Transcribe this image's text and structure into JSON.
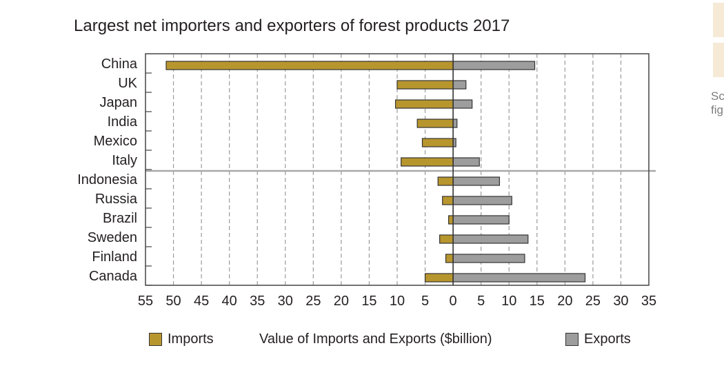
{
  "chart_data": {
    "type": "bar",
    "orientation": "horizontal",
    "title": "Largest net importers and exporters of forest products 2017",
    "xlabel": "Value of Imports and Exports ($billion)",
    "xlim": [
      -55,
      35
    ],
    "x_ticks": [
      -55,
      -50,
      -45,
      -40,
      -35,
      -30,
      -25,
      -20,
      -15,
      -10,
      -5,
      0,
      5,
      10,
      15,
      20,
      25,
      30,
      35
    ],
    "x_tick_labels": [
      "55",
      "50",
      "45",
      "40",
      "35",
      "30",
      "25",
      "20",
      "15",
      "10",
      "5",
      "0",
      "5",
      "10",
      "15",
      "20",
      "25",
      "30",
      "35"
    ],
    "categories": [
      "China",
      "UK",
      "Japan",
      "India",
      "Mexico",
      "Italy",
      "Indonesia",
      "Russia",
      "Brazil",
      "Sweden",
      "Finland",
      "Canada"
    ],
    "series": [
      {
        "name": "Imports",
        "color": "#b8962e",
        "values": [
          -51.3,
          -10,
          -10.3,
          -6.4,
          -5.5,
          -9.3,
          -2.7,
          -1.9,
          -0.8,
          -2.4,
          -1.3,
          -5
        ]
      },
      {
        "name": "Exports",
        "color": "#9d9d9d",
        "values": [
          14.6,
          2.3,
          3.4,
          0.7,
          0.5,
          4.7,
          8.3,
          10.5,
          10,
          13.4,
          12.8,
          23.6
        ]
      }
    ],
    "separator_after_category": "Italy",
    "grid": true,
    "legend": "bottom"
  },
  "sidebar": {
    "text_lines": [
      "Sc",
      "fig"
    ]
  }
}
